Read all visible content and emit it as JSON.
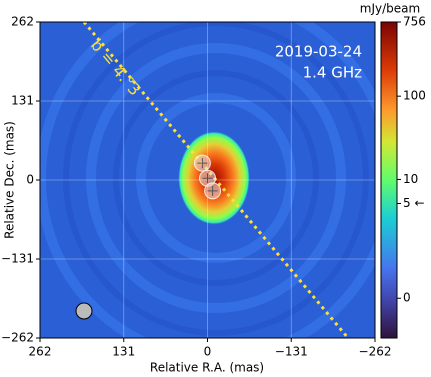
{
  "chart_data": {
    "type": "image",
    "xlabel": "Relative R.A. (mas)",
    "ylabel": "Relative Dec. (mas)",
    "annotations": [
      "2019-03-24",
      "1.4 GHz"
    ],
    "line_label": "b = 4.°3",
    "xlim": [
      262,
      -262
    ],
    "ylim": [
      -262,
      262
    ],
    "xticks": [
      262,
      131,
      0,
      {
        "value": -131,
        "label": "−131"
      },
      {
        "value": -262,
        "label": "−262"
      }
    ],
    "yticks": [
      {
        "value": -262,
        "label": "−262"
      },
      {
        "value": -131,
        "label": "−131"
      },
      0,
      131,
      262
    ],
    "grid": true,
    "components": {
      "x": [
        8,
        0,
        -8
      ],
      "y": [
        28,
        3,
        -18
      ]
    },
    "colorbar": {
      "label": "mJy/beam",
      "lim": [
        -0.8,
        756
      ],
      "linthresh": 0.41,
      "ticks": [
        0,
        {
          "value": 5,
          "label": "5 ←"
        },
        10,
        100,
        756
      ]
    }
  }
}
